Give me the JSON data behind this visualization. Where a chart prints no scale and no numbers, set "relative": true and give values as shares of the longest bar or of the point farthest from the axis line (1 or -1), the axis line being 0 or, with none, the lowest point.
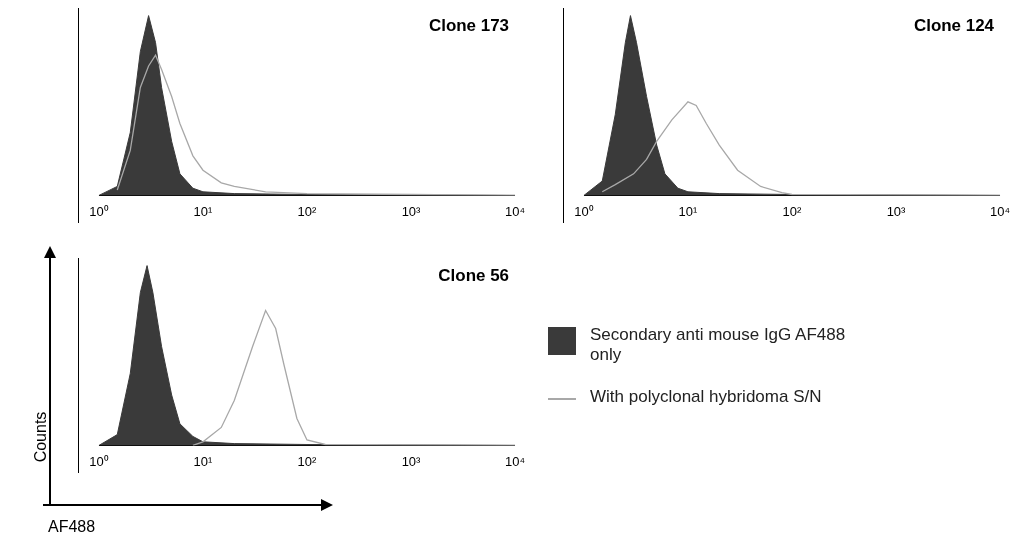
{
  "chart_data": [
    {
      "type": "area",
      "title": "Clone 173",
      "relative": true,
      "log": "x",
      "xlim": [
        1,
        10000
      ],
      "xticks": [
        {
          "value": 1,
          "label": "10⁰"
        },
        {
          "value": 10,
          "label": "10¹"
        },
        {
          "value": 100,
          "label": "10²"
        },
        {
          "value": 1000,
          "label": "10³"
        },
        {
          "value": 10000,
          "label": "10⁴"
        }
      ],
      "series": [
        {
          "color": "#3a3a3a",
          "x": [
            1,
            1.5,
            2,
            2.5,
            3,
            3.5,
            4,
            5,
            6,
            8,
            10,
            20,
            100,
            10000
          ],
          "values": [
            0,
            0.05,
            0.35,
            0.8,
            1,
            0.85,
            0.6,
            0.3,
            0.12,
            0.04,
            0.02,
            0.01,
            0.005,
            0
          ]
        },
        {
          "type": "line",
          "color": "#a8a8a8",
          "x": [
            1.5,
            2,
            2.5,
            3,
            3.5,
            4,
            5,
            6,
            8,
            10,
            15,
            20,
            40,
            100,
            1000,
            10000
          ],
          "values": [
            0.03,
            0.25,
            0.6,
            0.72,
            0.78,
            0.7,
            0.55,
            0.4,
            0.22,
            0.14,
            0.07,
            0.05,
            0.02,
            0.01,
            0.005,
            0
          ]
        }
      ]
    },
    {
      "type": "area",
      "title": "Clone 124",
      "relative": true,
      "log": "x",
      "xlim": [
        1,
        10000
      ],
      "xticks": [
        {
          "value": 1,
          "label": "10⁰"
        },
        {
          "value": 10,
          "label": "10¹"
        },
        {
          "value": 100,
          "label": "10²"
        },
        {
          "value": 1000,
          "label": "10³"
        },
        {
          "value": 10000,
          "label": "10⁴"
        }
      ],
      "series": [
        {
          "color": "#3a3a3a",
          "x": [
            1,
            1.5,
            2,
            2.5,
            2.8,
            3.2,
            4,
            5,
            6,
            8,
            10,
            20,
            100,
            10000
          ],
          "values": [
            0,
            0.08,
            0.45,
            0.85,
            1,
            0.85,
            0.55,
            0.28,
            0.12,
            0.04,
            0.02,
            0.01,
            0.005,
            0
          ]
        },
        {
          "type": "line",
          "color": "#a8a8a8",
          "x": [
            1.5,
            2,
            3,
            4,
            5,
            7,
            10,
            12,
            15,
            20,
            30,
            50,
            80,
            100,
            10000
          ],
          "values": [
            0.02,
            0.06,
            0.12,
            0.2,
            0.3,
            0.42,
            0.52,
            0.5,
            0.4,
            0.28,
            0.14,
            0.05,
            0.015,
            0.005,
            0
          ]
        }
      ]
    },
    {
      "type": "area",
      "title": "Clone 56",
      "relative": true,
      "log": "x",
      "xlim": [
        1,
        10000
      ],
      "xlabel": "AF488",
      "ylabel": "Counts",
      "legend": "right",
      "xticks": [
        {
          "value": 1,
          "label": "10⁰"
        },
        {
          "value": 10,
          "label": "10¹"
        },
        {
          "value": 100,
          "label": "10²"
        },
        {
          "value": 1000,
          "label": "10³"
        },
        {
          "value": 10000,
          "label": "10⁴"
        }
      ],
      "series": [
        {
          "name": "Secondary anti mouse IgG AF488 only",
          "color": "#3a3a3a",
          "x": [
            1,
            1.5,
            2,
            2.5,
            2.9,
            3.3,
            4,
            5,
            6,
            8,
            10,
            20,
            100,
            10000
          ],
          "values": [
            0,
            0.06,
            0.4,
            0.85,
            1,
            0.85,
            0.55,
            0.28,
            0.12,
            0.05,
            0.02,
            0.01,
            0.005,
            0
          ]
        },
        {
          "type": "line",
          "name": "With polyclonal hybridoma S/N",
          "color": "#a8a8a8",
          "x": [
            8,
            10,
            15,
            20,
            30,
            40,
            50,
            60,
            80,
            100,
            150,
            10000
          ],
          "values": [
            0,
            0.02,
            0.1,
            0.25,
            0.55,
            0.75,
            0.65,
            0.45,
            0.15,
            0.03,
            0.005,
            0
          ]
        }
      ]
    }
  ]
}
